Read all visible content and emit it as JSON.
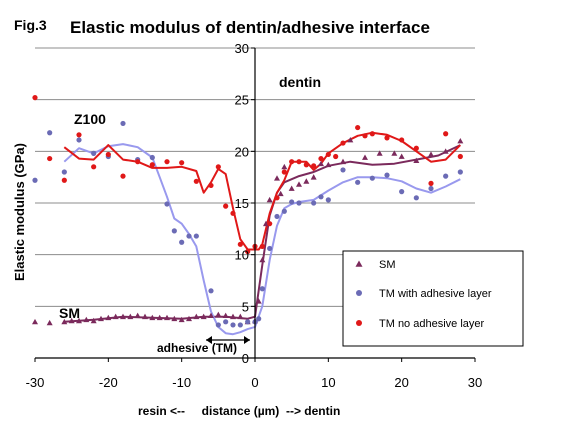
{
  "figure_label": "Fig.3",
  "chart_data": {
    "type": "scatter",
    "title": "Elastic modulus of dentin/adhesive interface",
    "xlabel": "resin <--     distance (µm)  --> dentin",
    "ylabel": "Elastic modulus (GPa)",
    "xlim": [
      -30,
      30
    ],
    "ylim": [
      0,
      30
    ],
    "x_ticks": [
      -30,
      -20,
      -10,
      0,
      10,
      20,
      30
    ],
    "y_ticks": [
      0,
      5,
      10,
      15,
      20,
      25,
      30
    ],
    "grid": "horizontal",
    "legend_position": "bottom-right",
    "annotations": {
      "dentin": "dentin",
      "z100": "Z100",
      "sm": "SM",
      "adhesive": "adhesive (TM)"
    },
    "series": [
      {
        "name": "SM",
        "color": "#7b2a5c",
        "marker": "triangle",
        "points": [
          [
            -30,
            3.5
          ],
          [
            -28,
            3.4
          ],
          [
            -26,
            3.5
          ],
          [
            -25,
            3.6
          ],
          [
            -24,
            3.6
          ],
          [
            -23,
            3.7
          ],
          [
            -22,
            3.6
          ],
          [
            -21,
            3.8
          ],
          [
            -20,
            3.9
          ],
          [
            -19,
            4.0
          ],
          [
            -18,
            4.0
          ],
          [
            -17,
            4.0
          ],
          [
            -16,
            4.1
          ],
          [
            -15,
            4.0
          ],
          [
            -14,
            3.9
          ],
          [
            -13,
            3.9
          ],
          [
            -12,
            3.9
          ],
          [
            -11,
            3.8
          ],
          [
            -10,
            3.7
          ],
          [
            -9,
            3.8
          ],
          [
            -8,
            4.0
          ],
          [
            -7,
            4.0
          ],
          [
            -6,
            4.1
          ],
          [
            -5,
            4.2
          ],
          [
            -4,
            4.1
          ],
          [
            -3,
            4.0
          ],
          [
            -2,
            4.0
          ],
          [
            -1,
            3.5
          ],
          [
            0,
            3.6
          ],
          [
            0.5,
            5.5
          ],
          [
            1,
            9.5
          ],
          [
            1.5,
            13.0
          ],
          [
            2,
            15.3
          ],
          [
            3,
            17.4
          ],
          [
            3.5,
            15.9
          ],
          [
            4,
            18.5
          ],
          [
            5,
            16.4
          ],
          [
            6,
            16.8
          ],
          [
            7,
            17.1
          ],
          [
            8,
            17.5
          ],
          [
            9,
            18.8
          ],
          [
            10,
            18.7
          ],
          [
            12,
            19.0
          ],
          [
            13,
            21.1
          ],
          [
            15,
            19.4
          ],
          [
            17,
            19.8
          ],
          [
            19,
            19.8
          ],
          [
            20,
            19.5
          ],
          [
            22,
            19.1
          ],
          [
            24,
            19.7
          ],
          [
            26,
            20.0
          ],
          [
            28,
            21.0
          ]
        ]
      },
      {
        "name": "TM with adhesive layer",
        "color": "#6b6bb5",
        "marker": "circle",
        "points": [
          [
            -30,
            17.2
          ],
          [
            -28,
            21.8
          ],
          [
            -26,
            18.0
          ],
          [
            -24,
            21.1
          ],
          [
            -22,
            19.8
          ],
          [
            -20,
            19.5
          ],
          [
            -18,
            22.7
          ],
          [
            -16,
            19.2
          ],
          [
            -14,
            19.4
          ],
          [
            -12,
            14.9
          ],
          [
            -11,
            12.3
          ],
          [
            -10,
            11.2
          ],
          [
            -9,
            11.8
          ],
          [
            -8,
            11.8
          ],
          [
            -6,
            6.5
          ],
          [
            -5,
            3.2
          ],
          [
            -4,
            3.5
          ],
          [
            -3,
            3.2
          ],
          [
            -2,
            3.2
          ],
          [
            -1,
            3.5
          ],
          [
            0,
            3.5
          ],
          [
            0.5,
            3.8
          ],
          [
            1,
            6.7
          ],
          [
            2,
            10.6
          ],
          [
            3,
            13.7
          ],
          [
            4,
            14.2
          ],
          [
            5,
            15.1
          ],
          [
            6,
            15.0
          ],
          [
            8,
            15.0
          ],
          [
            9,
            15.6
          ],
          [
            10,
            15.3
          ],
          [
            12,
            18.2
          ],
          [
            14,
            17.0
          ],
          [
            16,
            17.4
          ],
          [
            18,
            17.7
          ],
          [
            20,
            16.1
          ],
          [
            22,
            15.5
          ],
          [
            24,
            16.4
          ],
          [
            26,
            17.6
          ],
          [
            28,
            18.0
          ]
        ]
      },
      {
        "name": "TM no adhesive layer",
        "color": "#e01818",
        "marker": "circle",
        "points": [
          [
            -30,
            25.2
          ],
          [
            -28,
            19.3
          ],
          [
            -26,
            17.2
          ],
          [
            -24,
            21.6
          ],
          [
            -22,
            18.5
          ],
          [
            -20,
            19.7
          ],
          [
            -18,
            17.6
          ],
          [
            -16,
            19.0
          ],
          [
            -14,
            18.7
          ],
          [
            -12,
            19.0
          ],
          [
            -10,
            18.9
          ],
          [
            -8,
            17.1
          ],
          [
            -6,
            16.7
          ],
          [
            -5,
            18.5
          ],
          [
            -4,
            14.7
          ],
          [
            -3,
            14.0
          ],
          [
            -2,
            11.0
          ],
          [
            -1,
            10.3
          ],
          [
            0,
            10.8
          ],
          [
            1,
            10.8
          ],
          [
            2,
            13.0
          ],
          [
            3,
            15.5
          ],
          [
            4,
            18.0
          ],
          [
            5,
            19.0
          ],
          [
            6,
            19.0
          ],
          [
            7,
            18.7
          ],
          [
            8,
            18.6
          ],
          [
            9,
            19.3
          ],
          [
            10,
            19.7
          ],
          [
            11,
            19.5
          ],
          [
            12,
            20.8
          ],
          [
            14,
            22.3
          ],
          [
            15,
            21.5
          ],
          [
            16,
            21.7
          ],
          [
            18,
            21.3
          ],
          [
            20,
            21.1
          ],
          [
            22,
            20.3
          ],
          [
            24,
            16.9
          ],
          [
            26,
            21.7
          ],
          [
            28,
            19.5
          ]
        ]
      }
    ],
    "trend_lines": [
      {
        "name": "SM",
        "color": "#7b2a5c",
        "points": [
          [
            -26,
            3.5
          ],
          [
            -22,
            3.7
          ],
          [
            -18,
            4.0
          ],
          [
            -14,
            3.9
          ],
          [
            -10,
            3.8
          ],
          [
            -7,
            4.0
          ],
          [
            -4,
            4.0
          ],
          [
            -1,
            3.8
          ],
          [
            0,
            4.0
          ],
          [
            1,
            9.0
          ],
          [
            2,
            13.8
          ],
          [
            3,
            16.0
          ],
          [
            4,
            17.0
          ],
          [
            6,
            17.6
          ],
          [
            8,
            18.0
          ],
          [
            10,
            18.6
          ],
          [
            13,
            19.0
          ],
          [
            16,
            18.7
          ],
          [
            19,
            18.8
          ],
          [
            22,
            19.2
          ],
          [
            25,
            19.6
          ],
          [
            28,
            20.6
          ]
        ]
      },
      {
        "name": "TM with adhesive layer",
        "color": "#9999ee",
        "points": [
          [
            -26,
            19.0
          ],
          [
            -24,
            20.3
          ],
          [
            -22,
            19.8
          ],
          [
            -20,
            20.5
          ],
          [
            -18,
            20.7
          ],
          [
            -16,
            20.4
          ],
          [
            -14,
            19.4
          ],
          [
            -13,
            17.5
          ],
          [
            -12,
            15.6
          ],
          [
            -11,
            13.5
          ],
          [
            -10,
            13.0
          ],
          [
            -9,
            12.0
          ],
          [
            -8,
            10.8
          ],
          [
            -7,
            7.5
          ],
          [
            -6,
            4.5
          ],
          [
            -5,
            3.0
          ],
          [
            -4,
            2.4
          ],
          [
            -3,
            2.3
          ],
          [
            -2,
            2.5
          ],
          [
            -1,
            2.8
          ],
          [
            0,
            3.0
          ],
          [
            1,
            5.0
          ],
          [
            2,
            9.5
          ],
          [
            3,
            12.8
          ],
          [
            4,
            14.5
          ],
          [
            5,
            14.9
          ],
          [
            6,
            15.1
          ],
          [
            8,
            15.3
          ],
          [
            10,
            16.2
          ],
          [
            12,
            17.0
          ],
          [
            14,
            17.5
          ],
          [
            16,
            17.5
          ],
          [
            18,
            17.4
          ],
          [
            20,
            17.1
          ],
          [
            22,
            16.4
          ],
          [
            24,
            16.0
          ],
          [
            26,
            16.6
          ],
          [
            28,
            17.3
          ]
        ]
      },
      {
        "name": "TM no adhesive layer",
        "color": "#e01818",
        "points": [
          [
            -26,
            20.4
          ],
          [
            -24,
            19.3
          ],
          [
            -22,
            19.2
          ],
          [
            -20,
            20.6
          ],
          [
            -18,
            19.2
          ],
          [
            -16,
            19.0
          ],
          [
            -14,
            18.4
          ],
          [
            -12,
            18.4
          ],
          [
            -10,
            18.5
          ],
          [
            -8,
            18.1
          ],
          [
            -7,
            16.0
          ],
          [
            -6,
            17.0
          ],
          [
            -5,
            18.3
          ],
          [
            -4,
            17.8
          ],
          [
            -3,
            14.5
          ],
          [
            -2,
            11.5
          ],
          [
            -1,
            10.5
          ],
          [
            0,
            10.5
          ],
          [
            0.5,
            10.5
          ],
          [
            1,
            11.0
          ],
          [
            2,
            14.0
          ],
          [
            3,
            16.0
          ],
          [
            4,
            17.2
          ],
          [
            5,
            19.0
          ],
          [
            6,
            19.0
          ],
          [
            7,
            19.0
          ],
          [
            8,
            18.2
          ],
          [
            9,
            18.8
          ],
          [
            10,
            19.8
          ],
          [
            12,
            20.8
          ],
          [
            14,
            21.5
          ],
          [
            16,
            21.8
          ],
          [
            18,
            21.6
          ],
          [
            20,
            21.0
          ],
          [
            22,
            20.0
          ],
          [
            24,
            19.0
          ],
          [
            26,
            19.2
          ],
          [
            28,
            20.6
          ]
        ]
      }
    ]
  }
}
